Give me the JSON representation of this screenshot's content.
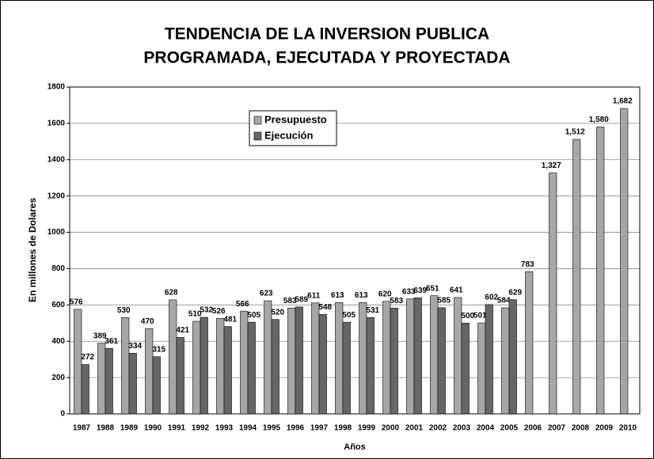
{
  "chart_data": {
    "type": "bar",
    "title": [
      "TENDENCIA DE LA INVERSION PUBLICA",
      "PROGRAMADA, EJECUTADA Y PROYECTADA"
    ],
    "x_label": "Años",
    "y_label": "En millones de Dolares",
    "categories": [
      "1987",
      "1988",
      "1989",
      "1990",
      "1991",
      "1992",
      "1993",
      "1994",
      "1995",
      "1996",
      "1997",
      "1998",
      "1999",
      "2000",
      "2001",
      "2002",
      "2003",
      "2004",
      "2005",
      "2006",
      "2007",
      "2008",
      "2009",
      "2010"
    ],
    "series": [
      {
        "name": "Presupuesto",
        "color": "#a6a6a6",
        "values": [
          576,
          389,
          530,
          470,
          628,
          510,
          526,
          566,
          623,
          583,
          611,
          613,
          613,
          620,
          633,
          651,
          641,
          501,
          584,
          783,
          1327,
          1512,
          1580,
          1682
        ],
        "value_labels": [
          "576",
          "389",
          "530",
          "470",
          "628",
          "510",
          "526",
          "566",
          "623",
          "583",
          "611",
          "613",
          "613",
          "620",
          "633",
          "651",
          "641",
          "501",
          "584",
          "783",
          "1,327",
          "1,512",
          "1,580",
          "1,682"
        ]
      },
      {
        "name": "Ejecución",
        "color": "#666666",
        "values": [
          272,
          361,
          334,
          315,
          421,
          532,
          481,
          505,
          520,
          589,
          548,
          505,
          531,
          583,
          639,
          585,
          500,
          602,
          629,
          null,
          null,
          null,
          null,
          null
        ]
      }
    ],
    "ylim": [
      0,
      1800
    ],
    "yticks": [
      0,
      200,
      400,
      600,
      800,
      1000,
      1200,
      1400,
      1600,
      1800
    ],
    "grid": true,
    "legend": "top-left"
  }
}
